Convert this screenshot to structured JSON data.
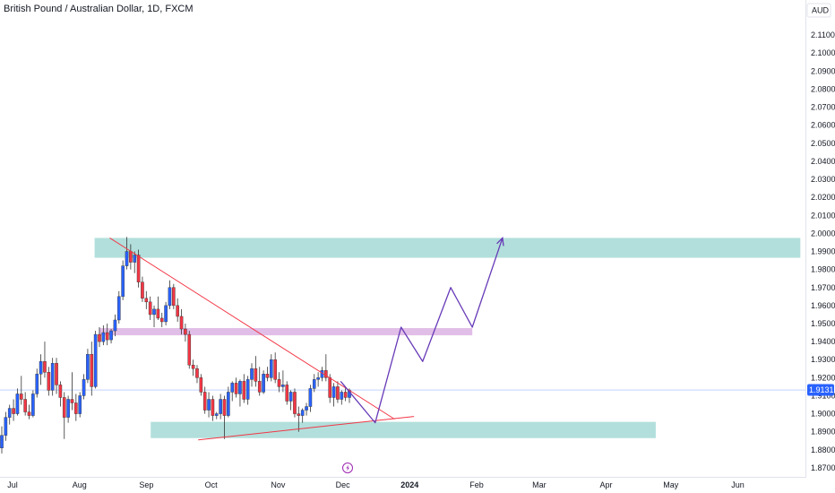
{
  "header": {
    "symbol_title": "British Pound / Australian Dollar, 1D, FXCM",
    "currency": "AUD"
  },
  "colors": {
    "up": "#2962ff",
    "down": "#f23645",
    "zone_green": "#b2dfdb",
    "zone_pink": "#e1bee7",
    "trendline": "#f23645",
    "projection": "#673ab7",
    "last_price_tag": "#2962ff",
    "flash_icon": "#9c27b0"
  },
  "chart_data": {
    "type": "candlestick",
    "title": "British Pound / Australian Dollar, 1D, FXCM",
    "y_axis": {
      "range": [
        1.865,
        2.118
      ],
      "ticks": [
        "1.87000",
        "1.88000",
        "1.89000",
        "1.90000",
        "1.91000",
        "1.92000",
        "1.93000",
        "1.94000",
        "1.95000",
        "1.96000",
        "1.97000",
        "1.98000",
        "1.99000",
        "2.00000",
        "2.01000",
        "2.02000",
        "2.03000",
        "2.04000",
        "2.05000",
        "2.06000",
        "2.07000",
        "2.08000",
        "2.09000",
        "2.10000",
        "2.11000"
      ]
    },
    "x_axis": {
      "labels": [
        "Jul",
        "Aug",
        "Sep",
        "Oct",
        "Nov",
        "Dec",
        "2024",
        "Feb",
        "Mar",
        "Apr",
        "May",
        "Jun"
      ]
    },
    "last_price": "1.91319",
    "grid": false,
    "candles": [
      [
        1.881,
        1.893,
        1.878,
        1.888
      ],
      [
        1.888,
        1.901,
        1.885,
        1.898
      ],
      [
        1.898,
        1.905,
        1.894,
        1.903
      ],
      [
        1.903,
        1.908,
        1.896,
        1.9
      ],
      [
        1.9,
        1.914,
        1.899,
        1.911
      ],
      [
        1.911,
        1.921,
        1.905,
        1.908
      ],
      [
        1.908,
        1.912,
        1.899,
        1.901
      ],
      [
        1.901,
        1.905,
        1.897,
        1.899
      ],
      [
        1.899,
        1.913,
        1.898,
        1.911
      ],
      [
        1.911,
        1.925,
        1.909,
        1.922
      ],
      [
        1.922,
        1.933,
        1.916,
        1.929
      ],
      [
        1.929,
        1.94,
        1.92,
        1.923
      ],
      [
        1.923,
        1.926,
        1.91,
        1.913
      ],
      [
        1.913,
        1.931,
        1.91,
        1.928
      ],
      [
        1.928,
        1.931,
        1.911,
        1.916
      ],
      [
        1.916,
        1.918,
        1.904,
        1.909
      ],
      [
        1.909,
        1.912,
        1.886,
        1.898
      ],
      [
        1.898,
        1.91,
        1.895,
        1.908
      ],
      [
        1.908,
        1.923,
        1.902,
        1.906
      ],
      [
        1.906,
        1.911,
        1.896,
        1.9
      ],
      [
        1.9,
        1.912,
        1.898,
        1.91
      ],
      [
        1.91,
        1.922,
        1.908,
        1.919
      ],
      [
        1.919,
        1.936,
        1.917,
        1.933
      ],
      [
        1.933,
        1.94,
        1.91,
        1.915
      ],
      [
        1.915,
        1.946,
        1.914,
        1.944
      ],
      [
        1.944,
        1.948,
        1.937,
        1.94
      ],
      [
        1.94,
        1.949,
        1.938,
        1.945
      ],
      [
        1.945,
        1.95,
        1.938,
        1.941
      ],
      [
        1.941,
        1.947,
        1.939,
        1.946
      ],
      [
        1.946,
        1.955,
        1.943,
        1.952
      ],
      [
        1.952,
        1.968,
        1.95,
        1.965
      ],
      [
        1.965,
        1.985,
        1.963,
        1.982
      ],
      [
        1.982,
        1.998,
        1.98,
        1.99
      ],
      [
        1.99,
        1.994,
        1.98,
        1.984
      ],
      [
        1.984,
        1.99,
        1.978,
        1.988
      ],
      [
        1.988,
        1.991,
        1.97,
        1.973
      ],
      [
        1.973,
        1.976,
        1.962,
        1.964
      ],
      [
        1.964,
        1.968,
        1.958,
        1.962
      ],
      [
        1.962,
        1.965,
        1.952,
        1.955
      ],
      [
        1.955,
        1.96,
        1.948,
        1.958
      ],
      [
        1.958,
        1.965,
        1.952,
        1.953
      ],
      [
        1.953,
        1.956,
        1.948,
        1.951
      ],
      [
        1.951,
        1.962,
        1.949,
        1.96
      ],
      [
        1.96,
        1.974,
        1.958,
        1.97
      ],
      [
        1.97,
        1.972,
        1.958,
        1.96
      ],
      [
        1.96,
        1.964,
        1.951,
        1.954
      ],
      [
        1.954,
        1.958,
        1.944,
        1.947
      ],
      [
        1.947,
        1.95,
        1.94,
        1.944
      ],
      [
        1.944,
        1.946,
        1.925,
        1.927
      ],
      [
        1.927,
        1.93,
        1.921,
        1.925
      ],
      [
        1.925,
        1.927,
        1.917,
        1.92
      ],
      [
        1.92,
        1.922,
        1.91,
        1.912
      ],
      [
        1.912,
        1.915,
        1.9,
        1.902
      ],
      [
        1.902,
        1.912,
        1.898,
        1.908
      ],
      [
        1.908,
        1.91,
        1.896,
        1.899
      ],
      [
        1.899,
        1.901,
        1.897,
        1.9
      ],
      [
        1.9,
        1.911,
        1.897,
        1.908
      ],
      [
        1.908,
        1.91,
        1.886,
        1.899
      ],
      [
        1.899,
        1.915,
        1.898,
        1.912
      ],
      [
        1.912,
        1.918,
        1.907,
        1.917
      ],
      [
        1.917,
        1.92,
        1.909,
        1.911
      ],
      [
        1.911,
        1.919,
        1.904,
        1.918
      ],
      [
        1.918,
        1.922,
        1.906,
        1.908
      ],
      [
        1.908,
        1.921,
        1.905,
        1.919
      ],
      [
        1.919,
        1.928,
        1.915,
        1.925
      ],
      [
        1.925,
        1.932,
        1.915,
        1.918
      ],
      [
        1.918,
        1.926,
        1.91,
        1.912
      ],
      [
        1.912,
        1.924,
        1.911,
        1.922
      ],
      [
        1.922,
        1.926,
        1.918,
        1.92
      ],
      [
        1.92,
        1.933,
        1.918,
        1.93
      ],
      [
        1.93,
        1.934,
        1.917,
        1.919
      ],
      [
        1.919,
        1.923,
        1.912,
        1.915
      ],
      [
        1.915,
        1.924,
        1.912,
        1.916
      ],
      [
        1.916,
        1.918,
        1.905,
        1.907
      ],
      [
        1.907,
        1.913,
        1.902,
        1.912
      ],
      [
        1.912,
        1.914,
        1.898,
        1.9
      ],
      [
        1.9,
        1.904,
        1.89,
        1.899
      ],
      [
        1.899,
        1.903,
        1.895,
        1.902
      ],
      [
        1.902,
        1.906,
        1.899,
        1.904
      ],
      [
        1.904,
        1.916,
        1.901,
        1.914
      ],
      [
        1.914,
        1.922,
        1.912,
        1.919
      ],
      [
        1.919,
        1.923,
        1.915,
        1.92
      ],
      [
        1.92,
        1.926,
        1.918,
        1.924
      ],
      [
        1.924,
        1.933,
        1.918,
        1.92
      ],
      [
        1.92,
        1.922,
        1.906,
        1.909
      ],
      [
        1.909,
        1.917,
        1.904,
        1.915
      ],
      [
        1.915,
        1.918,
        1.906,
        1.908
      ],
      [
        1.908,
        1.913,
        1.905,
        1.912
      ],
      [
        1.912,
        1.915,
        1.907,
        1.909
      ],
      [
        1.909,
        1.914,
        1.906,
        1.913
      ]
    ],
    "drawings": {
      "zones": [
        {
          "color": "zone_green",
          "date_start": "2023-08-08",
          "date_end": "2024-06-30",
          "price_top": 1.9975,
          "price_bottom": 1.9865
        },
        {
          "color": "zone_pink",
          "date_start": "2023-08-10",
          "date_end": "2024-01-30",
          "price_top": 1.9475,
          "price_bottom": 1.9435
        },
        {
          "color": "zone_green",
          "date_start": "2023-09-03",
          "date_end": "2024-04-24",
          "price_top": 1.8955,
          "price_bottom": 1.8865
        }
      ],
      "trendlines": [
        {
          "points": [
            [
              "2023-08-15",
              1.9975
            ],
            [
              "2023-12-25",
              1.897
            ]
          ]
        },
        {
          "points": [
            [
              "2023-09-25",
              1.8855
            ],
            [
              "2024-01-03",
              1.8985
            ]
          ]
        }
      ],
      "projection_path": [
        [
          "2023-11-30",
          1.918
        ],
        [
          "2023-12-16",
          1.895
        ],
        [
          "2023-12-28",
          1.948
        ],
        [
          "2024-01-07",
          1.929
        ],
        [
          "2024-01-20",
          1.97
        ],
        [
          "2024-01-30",
          1.948
        ],
        [
          "2024-02-13",
          1.9975
        ]
      ]
    }
  }
}
